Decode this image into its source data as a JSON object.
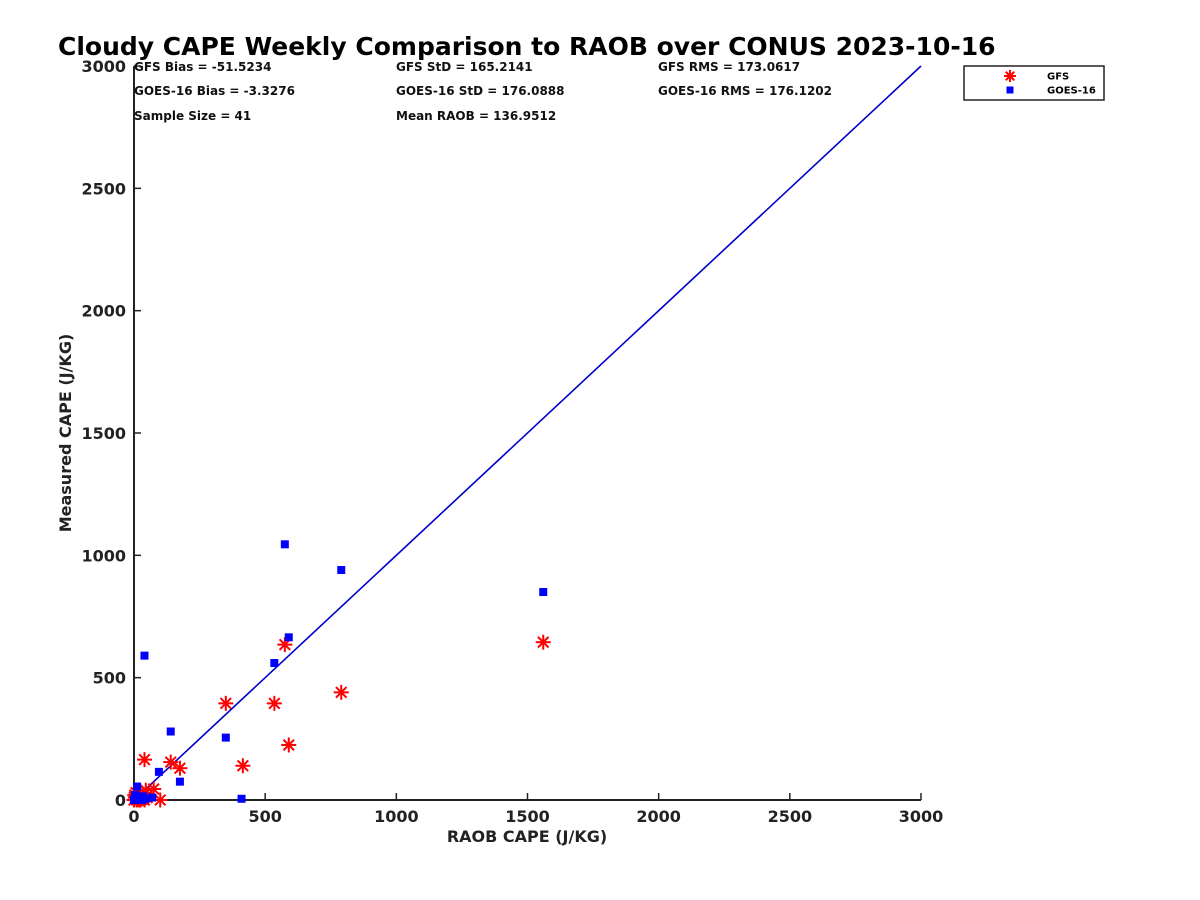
{
  "chart_data": {
    "type": "scatter",
    "title": "Cloudy CAPE Weekly Comparison to RAOB over CONUS 2023-10-16",
    "xlabel": "RAOB CAPE (J/KG)",
    "ylabel": "Measured CAPE (J/KG)",
    "xlim": [
      0,
      3000
    ],
    "ylim": [
      0,
      3000
    ],
    "xticks": [
      "0",
      "500",
      "1000",
      "1500",
      "2000",
      "2500",
      "3000"
    ],
    "yticks": [
      "0",
      "500",
      "1000",
      "1500",
      "2000",
      "2500",
      "3000"
    ],
    "grid": false,
    "legend_position": "top-right",
    "stats": [
      [
        "GFS Bias = -51.5234",
        "GFS StD = 165.2141",
        "GFS RMS = 173.0617"
      ],
      [
        "GOES-16 Bias = -3.3276",
        "GOES-16 StD = 176.0888",
        "GOES-16 RMS = 176.1202"
      ],
      [
        "Sample Size = 41",
        "Mean RAOB = 136.9512",
        ""
      ]
    ],
    "reference_line": {
      "x": [
        0,
        3000
      ],
      "y": [
        0,
        3000
      ],
      "color": "#0000cc"
    },
    "series": [
      {
        "name": "GFS",
        "marker": "asterisk",
        "color": "#ff0000",
        "points": [
          [
            0,
            0
          ],
          [
            3,
            20
          ],
          [
            5,
            10
          ],
          [
            8,
            30
          ],
          [
            10,
            0
          ],
          [
            12,
            5
          ],
          [
            15,
            15
          ],
          [
            18,
            0
          ],
          [
            20,
            25
          ],
          [
            22,
            10
          ],
          [
            25,
            0
          ],
          [
            30,
            5
          ],
          [
            35,
            20
          ],
          [
            40,
            0
          ],
          [
            45,
            40
          ],
          [
            50,
            10
          ],
          [
            40,
            165
          ],
          [
            75,
            45
          ],
          [
            100,
            0
          ],
          [
            140,
            155
          ],
          [
            175,
            130
          ],
          [
            350,
            395
          ],
          [
            415,
            140
          ],
          [
            535,
            395
          ],
          [
            575,
            635
          ],
          [
            590,
            225
          ],
          [
            790,
            440
          ],
          [
            1560,
            645
          ]
        ]
      },
      {
        "name": "GOES-16",
        "marker": "square",
        "color": "#0000ff",
        "points": [
          [
            0,
            0
          ],
          [
            3,
            10
          ],
          [
            5,
            20
          ],
          [
            8,
            0
          ],
          [
            10,
            5
          ],
          [
            12,
            55
          ],
          [
            15,
            0
          ],
          [
            20,
            10
          ],
          [
            25,
            5
          ],
          [
            30,
            0
          ],
          [
            35,
            15
          ],
          [
            45,
            5
          ],
          [
            70,
            10
          ],
          [
            40,
            590
          ],
          [
            95,
            115
          ],
          [
            140,
            280
          ],
          [
            175,
            75
          ],
          [
            350,
            255
          ],
          [
            410,
            5
          ],
          [
            535,
            560
          ],
          [
            575,
            1045
          ],
          [
            590,
            665
          ],
          [
            790,
            940
          ],
          [
            1560,
            850
          ]
        ]
      }
    ]
  }
}
